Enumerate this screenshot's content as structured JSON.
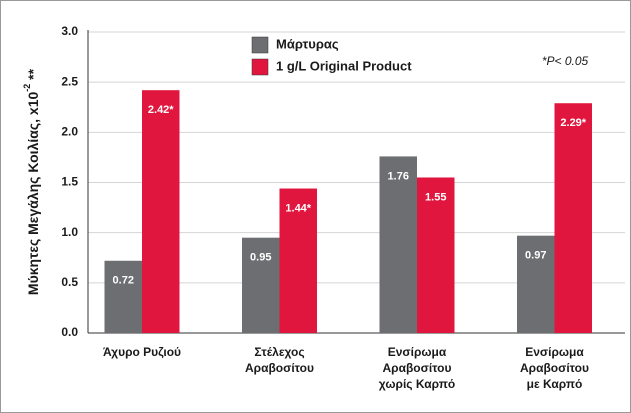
{
  "chart_data": {
    "type": "bar",
    "y_label": "Μύκητες Μεγάλης Κοιλίας, x10",
    "y_label_sup": "-2",
    "y_label_suffix": " **",
    "annotation": "*P< 0.05",
    "categories": [
      "Άχυρο Ρυζιού",
      "Στέλεχος\nΑραβοσίτου",
      "Ενσίρωμα\nΑραβοσίτου\nχωρίς Καρπό",
      "Ενσίρωμα\nΑραβοσίτου\nμε Καρπό"
    ],
    "series": [
      {
        "name": "Μάρτυρας",
        "color": "#6d6e71",
        "values": [
          0.72,
          0.95,
          1.76,
          0.97
        ]
      },
      {
        "name": "1 g/L Original Product",
        "color": "#e0163e",
        "values": [
          2.42,
          1.44,
          1.55,
          2.29
        ],
        "value_labels": [
          "2.42*",
          "1.44*",
          "1.55",
          "2.29*"
        ]
      }
    ],
    "ylim": [
      0,
      3
    ],
    "yticks": [
      {
        "value": 0,
        "label": "0.0"
      },
      {
        "value": 0.5,
        "label": "0.5"
      },
      {
        "value": 1,
        "label": "1.0"
      },
      {
        "value": 1.5,
        "label": "1.5"
      },
      {
        "value": 2,
        "label": "2.0"
      },
      {
        "value": 2.5,
        "label": "2.5"
      },
      {
        "value": 3,
        "label": "3.0"
      }
    ],
    "grid": true
  }
}
